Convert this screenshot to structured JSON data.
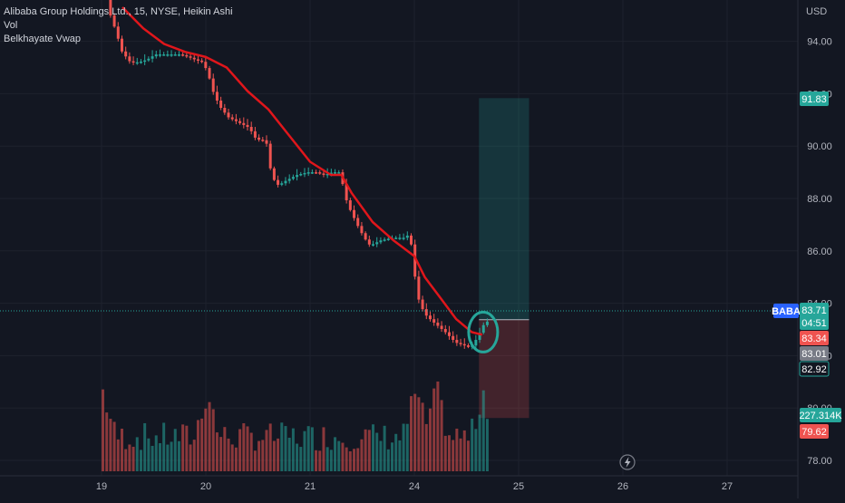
{
  "legend": {
    "symbol_line": "Alibaba Group Holdings Ltd., 15, NYSE, Heikin Ashi",
    "vol_label": "Vol",
    "indicator_label": "Belkhayate Vwap"
  },
  "axis": {
    "currency": "USD"
  },
  "price_labels": {
    "ticker": "BABA",
    "last": "83.71",
    "countdown": "04:51",
    "stop": "83.34",
    "prev": "83.01",
    "entry": "82.92",
    "target": "91.83",
    "volume": "227.314K",
    "low": "79.62"
  },
  "colors": {
    "background": "#131722",
    "bull": "#26a69a",
    "bear": "#ef5350",
    "vwap": "#e0161b",
    "profit_zone": "#26a69a",
    "loss_zone": "#ef5350",
    "label_blue": "#2962ff"
  },
  "icons": {
    "lightning": "lightning-icon"
  },
  "chart_data": {
    "type": "candlestick",
    "chart_style": "Heikin Ashi",
    "interval": "15",
    "exchange": "NYSE",
    "price_axis": {
      "ticks": [
        "78.00",
        "80.00",
        "82.00",
        "84.00",
        "86.00",
        "88.00",
        "90.00",
        "92.00",
        "94.00"
      ],
      "range": [
        77.6,
        95.5
      ]
    },
    "time_axis": {
      "ticks": [
        "19",
        "20",
        "21",
        "24",
        "25",
        "26",
        "27"
      ]
    },
    "price_path": [
      [
        0,
        96.6
      ],
      [
        0.06,
        96.0
      ],
      [
        0.1,
        95.1
      ],
      [
        0.16,
        94.4
      ],
      [
        0.22,
        93.6
      ],
      [
        0.3,
        93.2
      ],
      [
        0.38,
        93.2
      ],
      [
        0.46,
        93.3
      ],
      [
        0.54,
        93.5
      ],
      [
        0.62,
        93.5
      ],
      [
        0.7,
        93.5
      ],
      [
        0.78,
        93.5
      ],
      [
        0.86,
        93.4
      ],
      [
        0.92,
        93.3
      ],
      [
        1.0,
        93.2
      ],
      [
        1.05,
        92.7
      ],
      [
        1.1,
        92.0
      ],
      [
        1.16,
        91.5
      ],
      [
        1.24,
        91.1
      ],
      [
        1.34,
        90.9
      ],
      [
        1.44,
        90.7
      ],
      [
        1.5,
        90.3
      ],
      [
        1.56,
        90.2
      ],
      [
        1.6,
        90.3
      ],
      [
        1.62,
        89.6
      ],
      [
        1.66,
        88.8
      ],
      [
        1.72,
        88.5
      ],
      [
        1.8,
        88.7
      ],
      [
        1.9,
        88.9
      ],
      [
        2.0,
        89.0
      ],
      [
        2.08,
        89.0
      ],
      [
        2.16,
        88.9
      ],
      [
        2.24,
        89.0
      ],
      [
        2.3,
        89.0
      ],
      [
        2.34,
        88.5
      ],
      [
        2.38,
        87.8
      ],
      [
        2.44,
        87.3
      ],
      [
        2.5,
        86.8
      ],
      [
        2.56,
        86.4
      ],
      [
        2.6,
        86.2
      ],
      [
        2.7,
        86.4
      ],
      [
        2.82,
        86.5
      ],
      [
        2.94,
        86.5
      ],
      [
        2.98,
        86.7
      ],
      [
        3.0,
        86.0
      ],
      [
        3.03,
        85.0
      ],
      [
        3.06,
        84.2
      ],
      [
        3.12,
        83.6
      ],
      [
        3.2,
        83.3
      ],
      [
        3.32,
        82.9
      ],
      [
        3.42,
        82.5
      ],
      [
        3.5,
        82.4
      ],
      [
        3.56,
        82.3
      ],
      [
        3.6,
        82.5
      ],
      [
        3.64,
        82.8
      ],
      [
        3.68,
        83.1
      ],
      [
        3.7,
        83.3
      ]
    ],
    "vwap": [
      [
        0.2,
        95.3
      ],
      [
        0.4,
        94.5
      ],
      [
        0.6,
        93.9
      ],
      [
        0.8,
        93.6
      ],
      [
        1.0,
        93.4
      ],
      [
        1.2,
        93.0
      ],
      [
        1.4,
        92.1
      ],
      [
        1.6,
        91.4
      ],
      [
        1.8,
        90.4
      ],
      [
        2.0,
        89.4
      ],
      [
        2.2,
        88.9
      ],
      [
        2.3,
        88.9
      ],
      [
        2.4,
        88.2
      ],
      [
        2.6,
        87.1
      ],
      [
        2.8,
        86.4
      ],
      [
        3.0,
        85.8
      ],
      [
        3.1,
        85.0
      ],
      [
        3.25,
        84.2
      ],
      [
        3.4,
        83.4
      ],
      [
        3.55,
        82.9
      ],
      [
        3.65,
        82.8
      ]
    ],
    "volume_histogram": {
      "unit": "volume",
      "last_value": "227.314K",
      "spikes_x": [
        0.0,
        1.0,
        3.0,
        3.2,
        3.65
      ]
    },
    "long_position": {
      "entry": 83.37,
      "target": 91.83,
      "stop": 79.62,
      "start_x": 3.62,
      "end_x": 4.1
    },
    "highlight_circle": {
      "x": 3.66,
      "price": 82.9
    }
  }
}
